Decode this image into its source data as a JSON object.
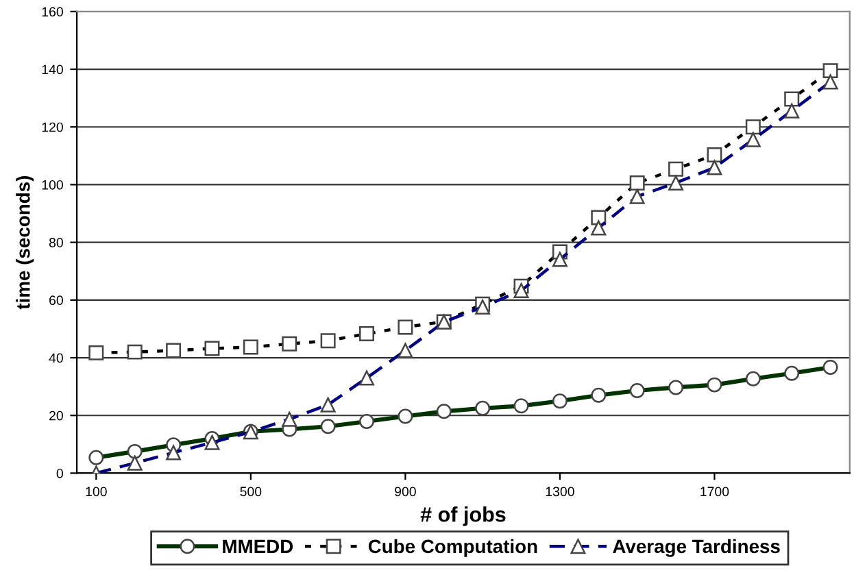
{
  "chart_data": {
    "type": "line",
    "xlabel": "# of jobs",
    "ylabel": "time (seconds)",
    "x": [
      100,
      200,
      300,
      400,
      500,
      600,
      700,
      800,
      900,
      1000,
      1100,
      1200,
      1300,
      1400,
      1500,
      1600,
      1700,
      1800,
      1900,
      2000
    ],
    "xlim": [
      50,
      2050
    ],
    "xticks": [
      100,
      500,
      900,
      1300,
      1700
    ],
    "ylim": [
      0,
      160
    ],
    "yticks": [
      0,
      20,
      40,
      60,
      80,
      100,
      120,
      140,
      160
    ],
    "grid": "y",
    "legend": "bottom",
    "series": [
      {
        "name": "MMEDD",
        "color": "#003300",
        "marker": "circle",
        "line_style": "solid",
        "values": [
          5.4,
          7.5,
          9.8,
          12,
          14.4,
          15.2,
          16.2,
          17.9,
          19.7,
          21.4,
          22.5,
          23.3,
          25,
          27,
          28.6,
          29.7,
          30.6,
          32.7,
          34.6,
          36.7
        ]
      },
      {
        "name": "Cube Computation",
        "color": "#000000",
        "marker": "square",
        "line_style": "dotted",
        "values": [
          41.7,
          42,
          42.5,
          43.2,
          43.7,
          44.8,
          45.9,
          48.3,
          50.6,
          52.5,
          58.6,
          64.8,
          76.7,
          88.6,
          100.6,
          105.4,
          110.3,
          120,
          129.7,
          139.5
        ]
      },
      {
        "name": "Average Tardiness",
        "color": "#000080",
        "marker": "triangle",
        "line_style": "dashed",
        "values": [
          0,
          3.5,
          7.1,
          10.6,
          14.3,
          18.7,
          23.7,
          33,
          42.5,
          52.4,
          57.6,
          63.3,
          74.1,
          85,
          95.9,
          100.6,
          105.9,
          115.6,
          125.6,
          135.6
        ]
      }
    ]
  }
}
